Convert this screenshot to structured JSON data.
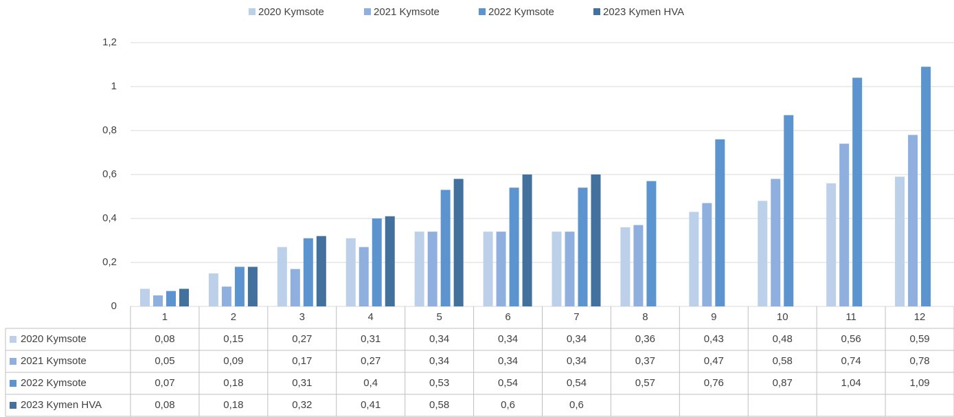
{
  "chart_data": {
    "type": "bar",
    "categories": [
      "1",
      "2",
      "3",
      "4",
      "5",
      "6",
      "7",
      "8",
      "9",
      "10",
      "11",
      "12"
    ],
    "series": [
      {
        "name": "2020 Kymsote",
        "color": "#bcd0ea",
        "values": [
          0.08,
          0.15,
          0.27,
          0.31,
          0.34,
          0.34,
          0.34,
          0.36,
          0.43,
          0.48,
          0.56,
          0.59
        ],
        "value_labels": [
          "0,08",
          "0,15",
          "0,27",
          "0,31",
          "0,34",
          "0,34",
          "0,34",
          "0,36",
          "0,43",
          "0,48",
          "0,56",
          "0,59"
        ]
      },
      {
        "name": "2021 Kymsote",
        "color": "#8fb0de",
        "values": [
          0.05,
          0.09,
          0.17,
          0.27,
          0.34,
          0.34,
          0.34,
          0.37,
          0.47,
          0.58,
          0.74,
          0.78
        ],
        "value_labels": [
          "0,05",
          "0,09",
          "0,17",
          "0,27",
          "0,34",
          "0,34",
          "0,34",
          "0,37",
          "0,47",
          "0,58",
          "0,74",
          "0,78"
        ]
      },
      {
        "name": "2022 Kymsote",
        "color": "#5b94cf",
        "values": [
          0.07,
          0.18,
          0.31,
          0.4,
          0.53,
          0.54,
          0.54,
          0.57,
          0.76,
          0.87,
          1.04,
          1.09
        ],
        "value_labels": [
          "0,07",
          "0,18",
          "0,31",
          "0,4",
          "0,53",
          "0,54",
          "0,54",
          "0,57",
          "0,76",
          "0,87",
          "1,04",
          "1,09"
        ]
      },
      {
        "name": "2023 Kymen HVA",
        "color": "#41719c",
        "values": [
          0.08,
          0.18,
          0.32,
          0.41,
          0.58,
          0.6,
          0.6,
          null,
          null,
          null,
          null,
          null
        ],
        "value_labels": [
          "0,08",
          "0,18",
          "0,32",
          "0,41",
          "0,58",
          "0,6",
          "0,6",
          null,
          null,
          null,
          null,
          null
        ]
      }
    ],
    "ylim": [
      0,
      1.2
    ],
    "yticks": [
      0,
      {
        "value": 0.2,
        "label": "0,2"
      },
      {
        "value": 0.4,
        "label": "0,4"
      },
      {
        "value": 0.6,
        "label": "0,6"
      },
      {
        "value": 0.8,
        "label": "0,8"
      },
      1,
      {
        "value": 1.2,
        "label": "1,2"
      }
    ],
    "grid": true,
    "legend": "top"
  }
}
